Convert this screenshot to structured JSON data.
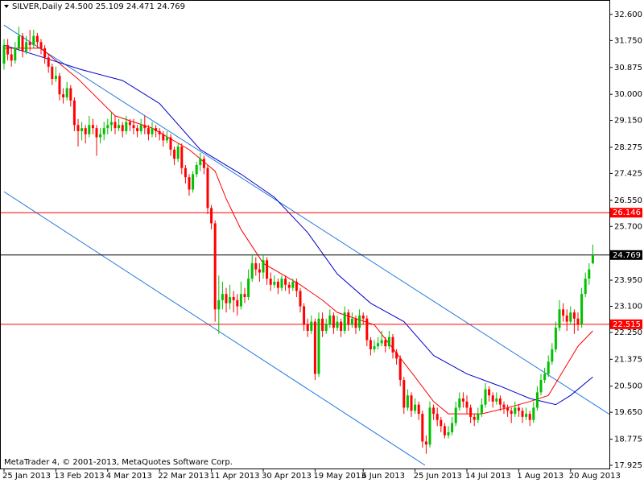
{
  "chart_data": {
    "type": "candlestick",
    "title": "SILVER,Daily  24.500 25.109 24.471 24.769",
    "footer": "MetaTrader 4, © 2001-2013, MetaQuotes Software Corp.",
    "up_color": "#00c000",
    "down_color": "#ff0000",
    "categories": [
      "25 Jan 2013",
      null,
      null,
      null,
      null,
      null,
      null,
      null,
      null,
      null,
      null,
      null,
      null,
      null,
      "13 Feb 2013",
      null,
      null,
      null,
      null,
      null,
      null,
      null,
      null,
      null,
      null,
      null,
      null,
      null,
      "4 Mar 2013",
      null,
      null,
      null,
      null,
      null,
      null,
      null,
      null,
      null,
      null,
      null,
      null,
      null,
      "22 Mar 2013",
      null,
      null,
      null,
      null,
      null,
      null,
      null,
      null,
      null,
      null,
      null,
      null,
      null,
      "11 Apr 2013",
      null,
      null,
      null,
      null,
      null,
      null,
      null,
      null,
      null,
      null,
      null,
      null,
      null,
      "30 Apr 2013",
      null,
      null,
      null,
      null,
      null,
      null,
      null,
      null,
      null,
      null,
      null,
      null,
      null,
      "19 May 2013",
      null,
      null,
      null,
      null,
      null,
      null,
      null,
      null,
      null,
      null,
      null,
      null,
      "6 Jun 2013",
      null,
      null,
      null,
      null,
      null,
      null,
      null,
      null,
      null,
      null,
      null,
      null,
      null,
      "25 Jun 2013",
      null,
      null,
      null,
      null,
      null,
      null,
      null,
      null,
      null,
      null,
      null,
      null,
      null,
      "14 Jul 2013",
      null,
      null,
      null,
      null,
      null,
      null,
      null,
      null,
      null,
      null,
      null,
      null,
      null,
      "1 Aug 2013",
      null,
      null,
      null,
      null,
      null,
      null,
      null,
      null,
      null,
      null,
      null,
      null,
      null,
      "20 Aug 2013",
      null,
      null,
      null,
      null,
      null,
      null
    ],
    "candles": [
      [
        31.0,
        31.8,
        30.8,
        31.6
      ],
      [
        31.6,
        31.8,
        31.1,
        31.3
      ],
      [
        31.3,
        31.5,
        30.9,
        31.1
      ],
      [
        31.1,
        31.7,
        31.0,
        31.5
      ],
      [
        31.5,
        32.2,
        31.4,
        31.9
      ],
      [
        31.9,
        32.0,
        31.2,
        31.4
      ],
      [
        31.4,
        31.9,
        31.3,
        31.7
      ],
      [
        31.7,
        32.1,
        31.4,
        31.6
      ],
      [
        31.6,
        32.1,
        31.5,
        31.9
      ],
      [
        31.9,
        32.0,
        31.5,
        31.7
      ],
      [
        31.7,
        31.8,
        31.3,
        31.5
      ],
      [
        31.5,
        31.6,
        31.0,
        31.2
      ],
      [
        31.2,
        31.3,
        30.7,
        30.9
      ],
      [
        30.9,
        31.0,
        30.3,
        30.5
      ],
      [
        30.5,
        30.9,
        30.4,
        30.6
      ],
      [
        30.6,
        30.7,
        29.8,
        30.0
      ],
      [
        30.0,
        30.2,
        29.7,
        29.9
      ],
      [
        29.9,
        30.4,
        29.8,
        30.2
      ],
      [
        30.2,
        30.3,
        29.6,
        29.8
      ],
      [
        29.8,
        29.9,
        28.8,
        29.0
      ],
      [
        29.0,
        29.2,
        28.3,
        28.8
      ],
      [
        28.8,
        29.1,
        28.5,
        28.9
      ],
      [
        28.9,
        29.0,
        28.4,
        28.7
      ],
      [
        28.7,
        29.3,
        28.6,
        29.0
      ],
      [
        29.0,
        29.2,
        28.7,
        28.9
      ],
      [
        28.9,
        29.0,
        28.0,
        28.6
      ],
      [
        28.6,
        28.9,
        28.4,
        28.7
      ],
      [
        28.7,
        29.1,
        28.5,
        28.9
      ],
      [
        28.9,
        29.2,
        28.7,
        29.0
      ],
      [
        29.0,
        29.4,
        28.8,
        29.1
      ],
      [
        29.1,
        29.3,
        28.7,
        28.9
      ],
      [
        28.9,
        29.2,
        28.8,
        29.0
      ],
      [
        29.0,
        29.1,
        28.6,
        28.8
      ],
      [
        28.8,
        29.3,
        28.7,
        29.1
      ],
      [
        29.1,
        29.2,
        28.8,
        29.0
      ],
      [
        29.0,
        29.2,
        28.7,
        28.9
      ],
      [
        28.9,
        29.0,
        28.6,
        28.8
      ],
      [
        28.8,
        29.2,
        28.7,
        29.0
      ],
      [
        29.0,
        29.3,
        28.7,
        28.9
      ],
      [
        28.9,
        29.0,
        28.5,
        28.7
      ],
      [
        28.7,
        29.1,
        28.6,
        28.9
      ],
      [
        28.9,
        29.0,
        28.6,
        28.8
      ],
      [
        28.8,
        28.9,
        28.5,
        28.7
      ],
      [
        28.7,
        28.8,
        28.3,
        28.5
      ],
      [
        28.5,
        28.8,
        28.4,
        28.6
      ],
      [
        28.6,
        28.7,
        28.0,
        28.2
      ],
      [
        28.2,
        28.3,
        27.7,
        27.9
      ],
      [
        27.9,
        28.4,
        27.8,
        28.3
      ],
      [
        28.3,
        28.4,
        27.4,
        27.6
      ],
      [
        27.6,
        27.7,
        27.1,
        27.3
      ],
      [
        27.3,
        27.4,
        26.7,
        26.9
      ],
      [
        26.9,
        27.5,
        26.8,
        27.4
      ],
      [
        27.4,
        27.8,
        27.3,
        27.7
      ],
      [
        27.7,
        28.1,
        27.5,
        27.9
      ],
      [
        27.9,
        28.0,
        27.4,
        27.6
      ],
      [
        27.6,
        27.7,
        26.1,
        26.3
      ],
      [
        26.3,
        26.4,
        25.6,
        25.8
      ],
      [
        25.8,
        25.9,
        22.6,
        23.0
      ],
      [
        23.0,
        24.1,
        22.2,
        23.3
      ],
      [
        23.3,
        23.9,
        23.0,
        23.5
      ],
      [
        23.5,
        23.7,
        22.9,
        23.2
      ],
      [
        23.2,
        23.8,
        23.0,
        23.4
      ],
      [
        23.4,
        23.6,
        22.9,
        23.3
      ],
      [
        23.3,
        23.5,
        22.8,
        23.1
      ],
      [
        23.1,
        23.9,
        23.0,
        23.5
      ],
      [
        23.5,
        23.7,
        23.2,
        23.4
      ],
      [
        23.4,
        24.3,
        23.3,
        24.0
      ],
      [
        24.0,
        24.8,
        23.9,
        24.5
      ],
      [
        24.5,
        24.7,
        24.1,
        24.3
      ],
      [
        24.3,
        24.5,
        23.9,
        24.2
      ],
      [
        24.2,
        24.8,
        24.0,
        24.6
      ],
      [
        24.6,
        24.7,
        23.8,
        24.0
      ],
      [
        24.0,
        24.2,
        23.6,
        23.8
      ],
      [
        23.8,
        24.1,
        23.7,
        23.9
      ],
      [
        23.9,
        24.0,
        23.5,
        23.7
      ],
      [
        23.7,
        24.1,
        23.6,
        24.0
      ],
      [
        24.0,
        24.1,
        23.6,
        23.8
      ],
      [
        23.8,
        23.9,
        23.5,
        23.7
      ],
      [
        23.7,
        24.0,
        23.6,
        23.9
      ],
      [
        23.9,
        24.0,
        23.4,
        23.6
      ],
      [
        23.6,
        23.7,
        22.9,
        23.1
      ],
      [
        23.1,
        23.2,
        22.3,
        22.5
      ],
      [
        22.5,
        22.7,
        22.1,
        22.3
      ],
      [
        22.3,
        22.8,
        22.2,
        22.6
      ],
      [
        22.6,
        22.7,
        20.7,
        20.9
      ],
      [
        20.9,
        22.9,
        20.8,
        22.7
      ],
      [
        22.7,
        22.9,
        22.1,
        22.3
      ],
      [
        22.3,
        22.7,
        22.2,
        22.5
      ],
      [
        22.5,
        23.0,
        22.4,
        22.8
      ],
      [
        22.8,
        22.9,
        22.2,
        22.4
      ],
      [
        22.4,
        22.8,
        22.3,
        22.6
      ],
      [
        22.6,
        22.7,
        22.1,
        22.3
      ],
      [
        22.3,
        23.1,
        22.2,
        22.9
      ],
      [
        22.9,
        23.0,
        22.3,
        22.5
      ],
      [
        22.5,
        22.9,
        22.4,
        22.7
      ],
      [
        22.7,
        22.8,
        22.2,
        22.4
      ],
      [
        22.4,
        23.0,
        22.3,
        22.8
      ],
      [
        22.8,
        22.9,
        22.5,
        22.7
      ],
      [
        22.7,
        22.8,
        21.8,
        22.0
      ],
      [
        22.0,
        22.1,
        21.5,
        21.7
      ],
      [
        21.7,
        22.0,
        21.6,
        21.8
      ],
      [
        21.8,
        22.1,
        21.7,
        21.9
      ],
      [
        21.9,
        22.3,
        21.8,
        22.0
      ],
      [
        22.0,
        22.1,
        21.6,
        21.8
      ],
      [
        21.8,
        22.3,
        21.7,
        22.1
      ],
      [
        22.1,
        22.2,
        21.4,
        21.6
      ],
      [
        21.6,
        21.7,
        21.2,
        21.4
      ],
      [
        21.4,
        21.5,
        20.5,
        20.7
      ],
      [
        20.7,
        20.8,
        19.6,
        19.8
      ],
      [
        19.8,
        20.4,
        19.7,
        20.2
      ],
      [
        20.2,
        20.3,
        19.5,
        19.7
      ],
      [
        19.7,
        20.1,
        19.6,
        19.9
      ],
      [
        19.9,
        20.0,
        19.4,
        19.6
      ],
      [
        19.6,
        19.7,
        18.5,
        18.7
      ],
      [
        18.7,
        18.9,
        18.3,
        18.6
      ],
      [
        18.6,
        20.0,
        18.5,
        19.8
      ],
      [
        19.8,
        19.9,
        19.4,
        19.6
      ],
      [
        19.6,
        19.8,
        19.2,
        19.4
      ],
      [
        19.4,
        19.5,
        19.0,
        19.2
      ],
      [
        19.2,
        19.3,
        18.8,
        18.9
      ],
      [
        18.9,
        19.2,
        18.8,
        19.0
      ],
      [
        19.0,
        19.5,
        18.9,
        19.3
      ],
      [
        19.3,
        20.0,
        19.2,
        19.8
      ],
      [
        19.8,
        20.3,
        19.7,
        20.1
      ],
      [
        20.1,
        20.3,
        19.8,
        20.0
      ],
      [
        20.0,
        20.2,
        19.6,
        19.8
      ],
      [
        19.8,
        19.9,
        19.3,
        19.5
      ],
      [
        19.5,
        19.6,
        19.2,
        19.4
      ],
      [
        19.4,
        19.8,
        19.3,
        19.6
      ],
      [
        19.6,
        20.1,
        19.5,
        19.9
      ],
      [
        19.9,
        20.6,
        19.8,
        20.4
      ],
      [
        20.4,
        20.5,
        20.0,
        20.2
      ],
      [
        20.2,
        20.3,
        19.8,
        20.0
      ],
      [
        20.0,
        20.3,
        19.9,
        20.1
      ],
      [
        20.1,
        20.2,
        19.7,
        19.9
      ],
      [
        19.9,
        20.0,
        19.6,
        19.8
      ],
      [
        19.8,
        19.9,
        19.5,
        19.7
      ],
      [
        19.7,
        19.8,
        19.3,
        19.6
      ],
      [
        19.6,
        20.0,
        19.5,
        19.8
      ],
      [
        19.8,
        19.9,
        19.5,
        19.7
      ],
      [
        19.7,
        19.8,
        19.3,
        19.5
      ],
      [
        19.5,
        19.8,
        19.4,
        19.6
      ],
      [
        19.6,
        19.7,
        19.2,
        19.4
      ],
      [
        19.4,
        20.0,
        19.3,
        19.8
      ],
      [
        19.8,
        20.5,
        19.7,
        20.3
      ],
      [
        20.3,
        20.9,
        20.2,
        20.7
      ],
      [
        20.7,
        21.1,
        20.6,
        20.9
      ],
      [
        20.9,
        21.5,
        20.8,
        21.3
      ],
      [
        21.3,
        21.9,
        21.2,
        21.7
      ],
      [
        21.7,
        22.6,
        21.6,
        22.4
      ],
      [
        22.4,
        23.3,
        22.3,
        23.0
      ],
      [
        23.0,
        23.2,
        22.6,
        22.8
      ],
      [
        22.8,
        23.0,
        22.3,
        22.6
      ],
      [
        22.6,
        23.1,
        22.5,
        22.9
      ],
      [
        22.9,
        23.0,
        22.2,
        22.7
      ],
      [
        22.7,
        22.9,
        22.3,
        22.5
      ],
      [
        22.5,
        23.7,
        22.4,
        23.5
      ],
      [
        23.5,
        24.2,
        23.4,
        24.0
      ],
      [
        24.0,
        24.5,
        23.8,
        24.3
      ],
      [
        24.5,
        25.109,
        24.471,
        24.769
      ]
    ],
    "moving_averages": [
      {
        "color": "#ff0000",
        "x": [
          0,
          10,
          20,
          30,
          40,
          50,
          57,
          60,
          64,
          70,
          80,
          86,
          90,
          100,
          111,
          116,
          120,
          129,
          136,
          142,
          147,
          151,
          155,
          159
        ],
        "values": [
          31.5,
          31.5,
          30.5,
          29.3,
          28.9,
          28.2,
          27.5,
          26.6,
          25.6,
          24.5,
          23.8,
          23.3,
          22.9,
          22.5,
          20.8,
          20.0,
          19.6,
          19.6,
          19.8,
          20.0,
          20.2,
          21.0,
          21.8,
          22.3
        ]
      },
      {
        "color": "#0000cc",
        "x": [
          0,
          8,
          21,
          32,
          42,
          53,
          64,
          73,
          82,
          90,
          99,
          108,
          116,
          125,
          134,
          142,
          149,
          153,
          159
        ],
        "values": [
          31.6,
          31.3,
          30.8,
          30.45,
          29.7,
          28.2,
          27.4,
          26.65,
          25.5,
          24.15,
          23.2,
          22.6,
          21.5,
          20.9,
          20.5,
          20.1,
          19.9,
          20.2,
          20.8
        ]
      }
    ],
    "trendlines": [
      {
        "color": "#1e78dc",
        "x": [
          0,
          164.6
        ],
        "values": [
          32.25,
          19.5
        ]
      },
      {
        "color": "#1e78dc",
        "x": [
          0,
          113.7
        ],
        "values": [
          26.83,
          17.925
        ]
      }
    ],
    "levels": [
      {
        "value": 26.146,
        "color": "#ff0000"
      },
      {
        "value": 22.515,
        "color": "#ff0000"
      },
      {
        "value": 24.769,
        "color": "#000000"
      }
    ],
    "ylim": [
      17.82,
      33.07
    ],
    "yticks": [
      {
        "value": 32.6,
        "label": "32.600"
      },
      {
        "value": 31.75,
        "label": "31.750"
      },
      {
        "value": 30.875,
        "label": "30.875"
      },
      {
        "value": 30.0,
        "label": "30.000"
      },
      {
        "value": 29.15,
        "label": "29.150"
      },
      {
        "value": 28.275,
        "label": "28.275"
      },
      {
        "value": 27.425,
        "label": "27.425"
      },
      {
        "value": 26.55,
        "label": "26.550"
      },
      {
        "value": 25.7,
        "label": "25.700"
      },
      {
        "value": 23.95,
        "label": "23.950"
      },
      {
        "value": 23.1,
        "label": "23.100"
      },
      {
        "value": 22.25,
        "label": "22.250"
      },
      {
        "value": 21.375,
        "label": "21.375"
      },
      {
        "value": 20.5,
        "label": "20.500"
      },
      {
        "value": 19.65,
        "label": "19.650"
      },
      {
        "value": 18.775,
        "label": "18.775"
      },
      {
        "value": 17.925,
        "label": "17.925"
      }
    ]
  }
}
